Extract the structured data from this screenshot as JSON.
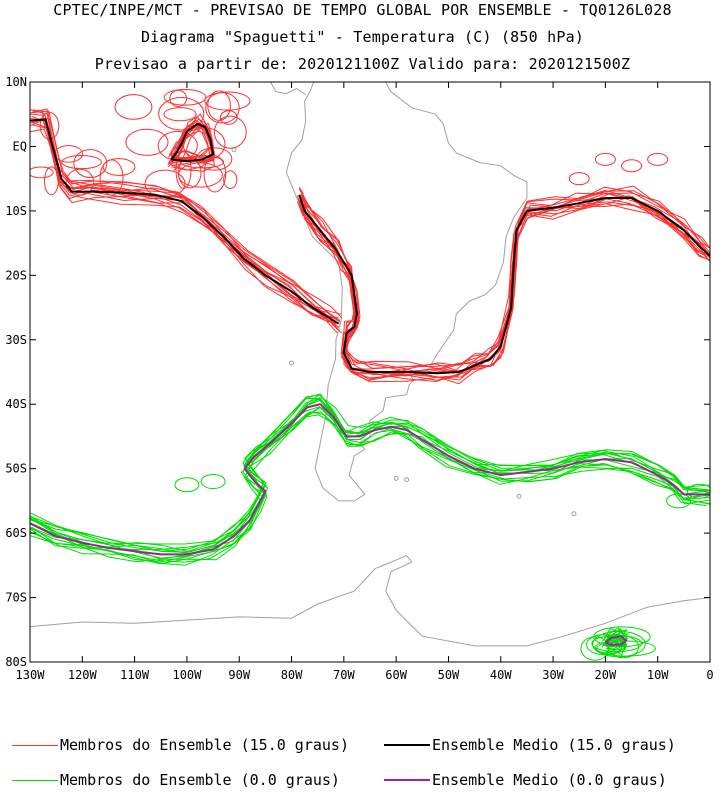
{
  "header": {
    "line1": "CPTEC/INPE/MCT - PREVISAO DE TEMPO GLOBAL POR ENSEMBLE - TQ0126L028",
    "line2": "Diagrama \"Spaguetti\" - Temperatura (C) (850 hPa)",
    "line3": "Previsao a partir de: 2020121100Z  Valido para: 2020121500Z"
  },
  "chart_data": {
    "type": "line",
    "title": "Diagrama \"Spaguetti\" - Temperatura (C) (850 hPa)",
    "xlabel": "",
    "ylabel": "",
    "xlim": [
      -130,
      0
    ],
    "ylim": [
      -80,
      10
    ],
    "x_ticks": [
      "130W",
      "120W",
      "110W",
      "100W",
      "90W",
      "80W",
      "70W",
      "60W",
      "50W",
      "40W",
      "30W",
      "20W",
      "10W",
      "0"
    ],
    "y_ticks": [
      "10N",
      "EQ",
      "10S",
      "20S",
      "30S",
      "40S",
      "50S",
      "60S",
      "70S",
      "80S"
    ],
    "legend_position": "bottom",
    "series": [
      {
        "name": "Ensemble Medio (15.0 graus)",
        "color": "#000000",
        "segments": [
          [
            [
              -130,
              4
            ],
            [
              -127,
              4.2
            ],
            [
              -126,
              1
            ],
            [
              -125,
              -2
            ],
            [
              -124,
              -5
            ],
            [
              -122,
              -7
            ],
            [
              -118,
              -7
            ],
            [
              -112,
              -7.2
            ],
            [
              -106,
              -7.5
            ],
            [
              -101,
              -8.5
            ],
            [
              -97,
              -11
            ],
            [
              -93,
              -14
            ],
            [
              -89,
              -17.5
            ],
            [
              -85,
              -20
            ],
            [
              -80,
              -22.5
            ],
            [
              -76,
              -25
            ],
            [
              -73,
              -26.5
            ],
            [
              -71,
              -27.5
            ]
          ],
          [
            [
              -103,
              -2
            ],
            [
              -102,
              -1
            ],
            [
              -101,
              0.5
            ],
            [
              -100,
              2.3
            ],
            [
              -98,
              3.5
            ],
            [
              -96.5,
              3
            ],
            [
              -95.5,
              1
            ],
            [
              -95,
              -1.2
            ],
            [
              -97,
              -2
            ],
            [
              -100,
              -2.3
            ],
            [
              -103,
              -2
            ]
          ],
          [
            [
              -78.5,
              -7.5
            ],
            [
              -77.5,
              -10
            ],
            [
              -74.5,
              -13
            ],
            [
              -71.5,
              -16
            ],
            [
              -70,
              -18
            ],
            [
              -68.5,
              -20
            ],
            [
              -68,
              -23
            ],
            [
              -67.5,
              -26
            ],
            [
              -68,
              -28
            ],
            [
              -69.5,
              -29
            ],
            [
              -70,
              -32
            ],
            [
              -68.5,
              -34.5
            ],
            [
              -65,
              -35
            ],
            [
              -58,
              -35
            ],
            [
              -52,
              -35.2
            ],
            [
              -48,
              -35
            ],
            [
              -45,
              -34
            ],
            [
              -42,
              -33
            ],
            [
              -40,
              -31
            ],
            [
              -38,
              -25
            ],
            [
              -37.5,
              -18
            ],
            [
              -37,
              -13
            ],
            [
              -35,
              -10
            ],
            [
              -30,
              -9.5
            ],
            [
              -25,
              -8.8
            ],
            [
              -20,
              -8
            ],
            [
              -15,
              -8
            ],
            [
              -10,
              -10
            ],
            [
              -5,
              -13
            ],
            [
              -2,
              -15.5
            ],
            [
              0,
              -17
            ]
          ]
        ]
      },
      {
        "name": "Ensemble Medio (0.0 graus)",
        "color": "#a020a0",
        "segments": [
          [
            [
              -130,
              -58.5
            ],
            [
              -125,
              -60.5
            ],
            [
              -120,
              -61.5
            ],
            [
              -115,
              -62.3
            ],
            [
              -110,
              -62.8
            ],
            [
              -105,
              -63.3
            ],
            [
              -100,
              -63.3
            ],
            [
              -95,
              -62.5
            ],
            [
              -91,
              -60.5
            ],
            [
              -88,
              -58
            ],
            [
              -86,
              -55
            ],
            [
              -85,
              -53.5
            ],
            [
              -87,
              -52
            ],
            [
              -89,
              -50
            ],
            [
              -87,
              -48
            ],
            [
              -84,
              -46
            ],
            [
              -80,
              -43
            ],
            [
              -77,
              -40.5
            ],
            [
              -74.5,
              -40
            ],
            [
              -72,
              -42
            ],
            [
              -69.5,
              -45
            ],
            [
              -67,
              -45
            ],
            [
              -64,
              -44
            ],
            [
              -61,
              -43.5
            ],
            [
              -58,
              -44
            ],
            [
              -55,
              -45.5
            ],
            [
              -50,
              -48
            ],
            [
              -45,
              -50
            ],
            [
              -40,
              -51
            ],
            [
              -35,
              -50.5
            ],
            [
              -30,
              -50
            ],
            [
              -25,
              -49
            ],
            [
              -20,
              -48.5
            ],
            [
              -15,
              -49
            ],
            [
              -10,
              -51
            ],
            [
              -7,
              -52.5
            ],
            [
              -5,
              -54
            ],
            [
              0,
              -54
            ]
          ],
          [
            [
              -20,
              -77
            ],
            [
              -19,
              -76.3
            ],
            [
              -17,
              -76
            ],
            [
              -16,
              -76.7
            ],
            [
              -17,
              -77.3
            ],
            [
              -19,
              -77.3
            ],
            [
              -20,
              -77
            ]
          ]
        ]
      },
      {
        "name": "Membros do Ensemble (15.0 graus)",
        "color": "#ff3030",
        "segments": "ensemble spread around Ensemble Medio (15.0 graus)"
      },
      {
        "name": "Membros do Ensemble (0.0 graus)",
        "color": "#00dd00",
        "segments": "ensemble spread around Ensemble Medio (0.0 graus)"
      }
    ]
  },
  "legend": {
    "members15": "Membros do Ensemble (15.0 graus)",
    "mean15": "Ensemble Medio (15.0 graus)",
    "members0": "Membros do Ensemble (0.0 graus)",
    "mean0": "Ensemble Medio (0.0 graus)"
  },
  "colors": {
    "members15": "#ff3030",
    "mean15": "#000000",
    "members0": "#00dd00",
    "mean0": "#a020a0",
    "coast": "#a0a0a0"
  }
}
